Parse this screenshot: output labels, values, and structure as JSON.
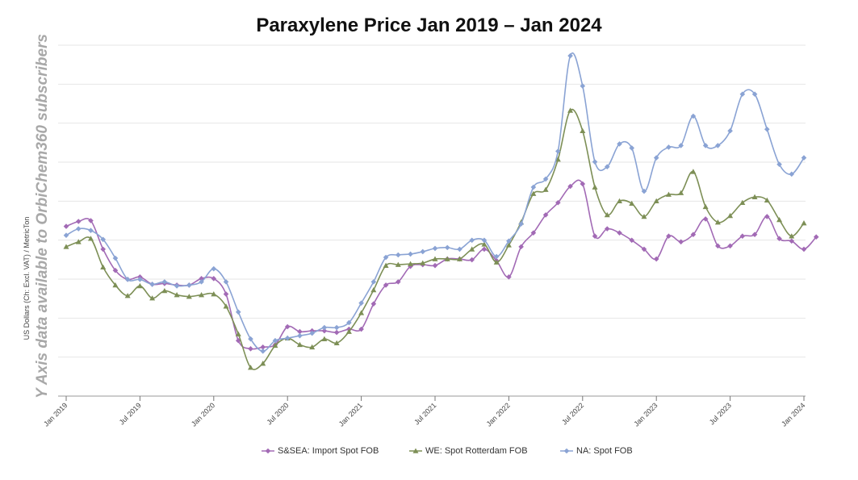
{
  "chart_data": {
    "type": "line",
    "title": "Paraxylene Price Jan 2019 – Jan 2024",
    "ylabel": "US Dollars (Ch: Excl. VAT) / MetricTon",
    "xlabel": "",
    "watermark": "Y Axis data available to OrbiChem360 subscribers",
    "x_ticks": [
      "Jan 2019",
      "Jul 2019",
      "Jan 2020",
      "Jul 2020",
      "Jan 2021",
      "Jul 2021",
      "Jan 2022",
      "Jul 2022",
      "Jan 2023",
      "Jul 2023",
      "Jan 2024"
    ],
    "grid": "horizontal",
    "legend_position": "bottom",
    "x_range": [
      0,
      60
    ],
    "y_range": [
      0,
      430
    ],
    "series": [
      {
        "name": "S&SEA: Import Spot FOB",
        "color": "#a26ab5",
        "marker": "diamond",
        "points": [
          [
            0,
            208
          ],
          [
            1,
            214
          ],
          [
            2,
            215
          ],
          [
            3,
            180
          ],
          [
            4,
            154
          ],
          [
            5,
            143
          ],
          [
            6,
            146
          ],
          [
            7,
            137
          ],
          [
            8,
            138
          ],
          [
            9,
            136
          ],
          [
            10,
            136
          ],
          [
            11,
            144
          ],
          [
            12,
            144
          ],
          [
            13,
            125
          ],
          [
            14,
            68
          ],
          [
            15,
            58
          ],
          [
            16,
            60
          ],
          [
            17,
            63
          ],
          [
            18,
            85
          ],
          [
            19,
            79
          ],
          [
            20,
            80
          ],
          [
            21,
            80
          ],
          [
            22,
            78
          ],
          [
            23,
            82
          ],
          [
            24,
            82
          ],
          [
            25,
            113
          ],
          [
            26,
            136
          ],
          [
            27,
            140
          ],
          [
            28,
            159
          ],
          [
            29,
            161
          ],
          [
            30,
            160
          ],
          [
            31,
            168
          ],
          [
            32,
            168
          ],
          [
            33,
            167
          ],
          [
            34,
            180
          ],
          [
            35,
            166
          ],
          [
            36,
            146
          ],
          [
            37,
            183
          ],
          [
            38,
            200
          ],
          [
            39,
            222
          ],
          [
            40,
            237
          ],
          [
            41,
            257
          ],
          [
            42,
            260
          ],
          [
            43,
            196
          ],
          [
            44,
            205
          ],
          [
            45,
            200
          ],
          [
            46,
            191
          ],
          [
            47,
            180
          ],
          [
            48,
            168
          ],
          [
            49,
            196
          ],
          [
            50,
            189
          ],
          [
            51,
            198
          ],
          [
            52,
            217
          ],
          [
            53,
            184
          ],
          [
            54,
            184
          ],
          [
            55,
            196
          ],
          [
            56,
            198
          ],
          [
            57,
            220
          ],
          [
            58,
            193
          ],
          [
            59,
            190
          ],
          [
            60,
            180
          ],
          [
            61,
            195
          ]
        ]
      },
      {
        "name": "WE: Spot Rotterdam FOB",
        "color": "#7d8f56",
        "marker": "triangle",
        "points": [
          [
            0,
            183
          ],
          [
            1,
            189
          ],
          [
            2,
            193
          ],
          [
            3,
            158
          ],
          [
            4,
            136
          ],
          [
            5,
            123
          ],
          [
            6,
            135
          ],
          [
            7,
            120
          ],
          [
            8,
            129
          ],
          [
            9,
            124
          ],
          [
            10,
            122
          ],
          [
            11,
            124
          ],
          [
            12,
            125
          ],
          [
            13,
            110
          ],
          [
            14,
            76
          ],
          [
            15,
            35
          ],
          [
            16,
            40
          ],
          [
            17,
            62
          ],
          [
            18,
            71
          ],
          [
            19,
            63
          ],
          [
            20,
            60
          ],
          [
            21,
            70
          ],
          [
            22,
            65
          ],
          [
            23,
            79
          ],
          [
            24,
            102
          ],
          [
            25,
            130
          ],
          [
            26,
            160
          ],
          [
            27,
            161
          ],
          [
            28,
            162
          ],
          [
            29,
            163
          ],
          [
            30,
            168
          ],
          [
            31,
            168
          ],
          [
            32,
            168
          ],
          [
            33,
            180
          ],
          [
            34,
            186
          ],
          [
            35,
            164
          ],
          [
            36,
            185
          ],
          [
            37,
            213
          ],
          [
            38,
            248
          ],
          [
            39,
            253
          ],
          [
            40,
            290
          ],
          [
            41,
            350
          ],
          [
            42,
            325
          ],
          [
            43,
            256
          ],
          [
            44,
            222
          ],
          [
            45,
            239
          ],
          [
            46,
            236
          ],
          [
            47,
            220
          ],
          [
            48,
            239
          ],
          [
            49,
            247
          ],
          [
            50,
            249
          ],
          [
            51,
            275
          ],
          [
            52,
            232
          ],
          [
            53,
            213
          ],
          [
            54,
            221
          ],
          [
            55,
            237
          ],
          [
            56,
            244
          ],
          [
            57,
            240
          ],
          [
            58,
            216
          ],
          [
            59,
            196
          ],
          [
            60,
            212
          ]
        ]
      },
      {
        "name": "NA: Spot FOB",
        "color": "#8aa3d4",
        "marker": "diamond",
        "points": [
          [
            0,
            197
          ],
          [
            1,
            205
          ],
          [
            2,
            203
          ],
          [
            3,
            192
          ],
          [
            4,
            169
          ],
          [
            5,
            143
          ],
          [
            6,
            143
          ],
          [
            7,
            137
          ],
          [
            8,
            140
          ],
          [
            9,
            135
          ],
          [
            10,
            136
          ],
          [
            11,
            140
          ],
          [
            12,
            156
          ],
          [
            13,
            140
          ],
          [
            14,
            103
          ],
          [
            15,
            70
          ],
          [
            16,
            55
          ],
          [
            17,
            68
          ],
          [
            18,
            71
          ],
          [
            19,
            74
          ],
          [
            20,
            77
          ],
          [
            21,
            84
          ],
          [
            22,
            84
          ],
          [
            23,
            90
          ],
          [
            24,
            114
          ],
          [
            25,
            140
          ],
          [
            26,
            170
          ],
          [
            27,
            173
          ],
          [
            28,
            174
          ],
          [
            29,
            177
          ],
          [
            30,
            181
          ],
          [
            31,
            182
          ],
          [
            32,
            180
          ],
          [
            33,
            191
          ],
          [
            34,
            191
          ],
          [
            35,
            171
          ],
          [
            36,
            190
          ],
          [
            37,
            211
          ],
          [
            38,
            256
          ],
          [
            39,
            266
          ],
          [
            40,
            300
          ],
          [
            41,
            417
          ],
          [
            42,
            380
          ],
          [
            43,
            287
          ],
          [
            44,
            281
          ],
          [
            45,
            309
          ],
          [
            46,
            304
          ],
          [
            47,
            251
          ],
          [
            48,
            292
          ],
          [
            49,
            305
          ],
          [
            50,
            307
          ],
          [
            51,
            343
          ],
          [
            52,
            307
          ],
          [
            53,
            307
          ],
          [
            54,
            325
          ],
          [
            55,
            370
          ],
          [
            56,
            370
          ],
          [
            57,
            327
          ],
          [
            58,
            284
          ],
          [
            59,
            272
          ],
          [
            60,
            292
          ]
        ]
      }
    ]
  }
}
